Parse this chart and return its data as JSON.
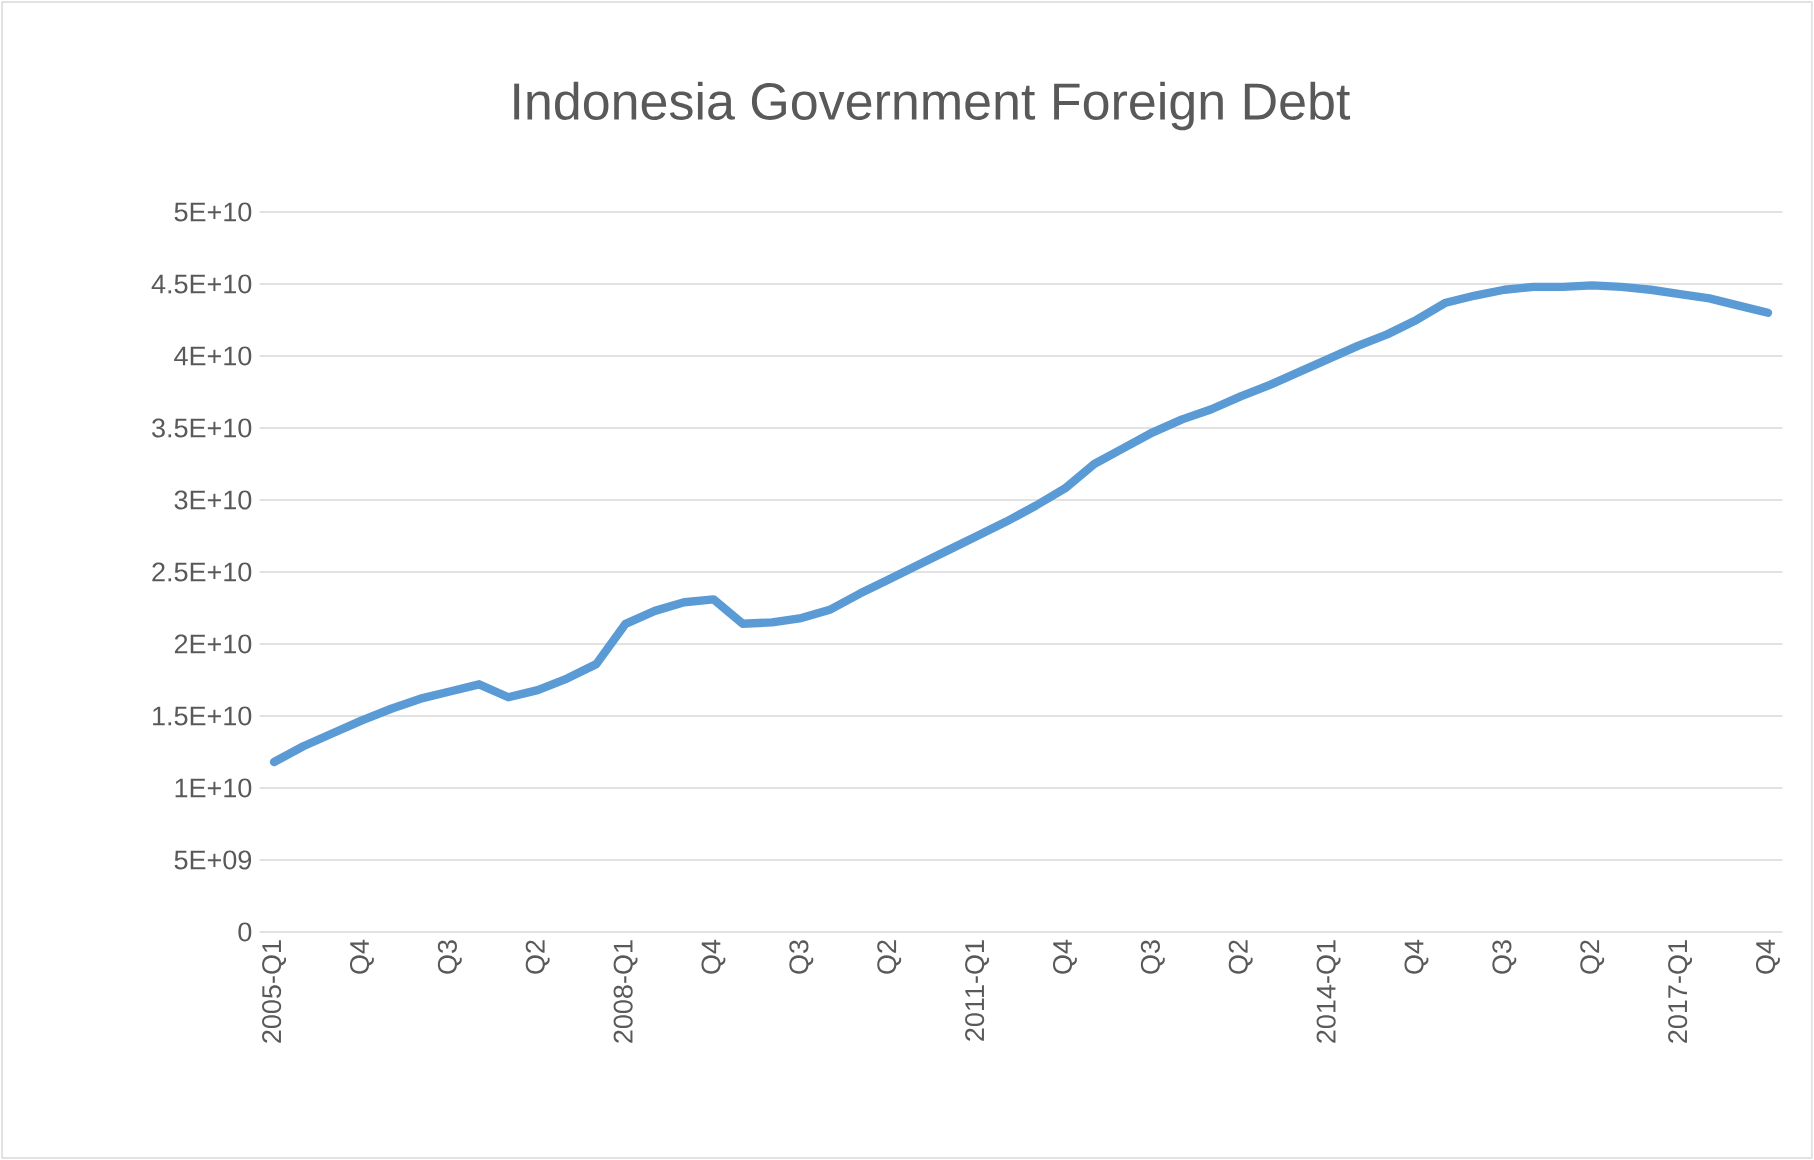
{
  "chart_data": {
    "type": "line",
    "title": "Indonesia Government Foreign Debt",
    "categories": [
      "2005-Q1",
      null,
      null,
      "Q4",
      null,
      null,
      "Q3",
      null,
      null,
      "Q2",
      null,
      null,
      "2008-Q1",
      null,
      null,
      "Q4",
      null,
      null,
      "Q3",
      null,
      null,
      "Q2",
      null,
      null,
      "2011-Q1",
      null,
      null,
      "Q4",
      null,
      null,
      "Q3",
      null,
      null,
      "Q2",
      null,
      null,
      "2014-Q1",
      null,
      null,
      "Q4",
      null,
      null,
      "Q3",
      null,
      null,
      "Q2",
      null,
      null,
      "2017-Q1",
      null,
      null,
      "Q4"
    ],
    "series": [
      {
        "color": "#5b9bd5",
        "values": [
          11800000000,
          12900000000,
          13800000000,
          14700000000,
          15500000000,
          16200000000,
          16700000000,
          17200000000,
          16300000000,
          16800000000,
          17600000000,
          18600000000,
          21400000000,
          22300000000,
          22900000000,
          23100000000,
          21400000000,
          21500000000,
          21800000000,
          22400000000,
          23500000000,
          24500000000,
          25500000000,
          26500000000,
          27500000000,
          28500000000,
          29600000000,
          30800000000,
          32500000000,
          33600000000,
          34700000000,
          35600000000,
          36300000000,
          37200000000,
          38000000000,
          38900000000,
          39800000000,
          40700000000,
          41500000000,
          42500000000,
          43700000000,
          44200000000,
          44600000000,
          44800000000,
          44800000000,
          44900000000,
          44800000000,
          44600000000,
          44300000000,
          44000000000,
          43500000000,
          43000000000
        ]
      }
    ],
    "ylim": [
      0,
      50000000000
    ],
    "yticks": [
      0,
      {
        "value": 5000000000,
        "label": "5E+09"
      },
      {
        "value": 10000000000,
        "label": "1E+10"
      },
      {
        "value": 15000000000,
        "label": "1.5E+10"
      },
      {
        "value": 20000000000,
        "label": "2E+10"
      },
      {
        "value": 25000000000,
        "label": "2.5E+10"
      },
      {
        "value": 30000000000,
        "label": "3E+10"
      },
      {
        "value": 35000000000,
        "label": "3.5E+10"
      },
      {
        "value": 40000000000,
        "label": "4E+10"
      },
      {
        "value": 45000000000,
        "label": "4.5E+10"
      },
      {
        "value": 50000000000,
        "label": "5E+10"
      }
    ],
    "grid": "y",
    "marker": "none",
    "line_style": "solid"
  }
}
